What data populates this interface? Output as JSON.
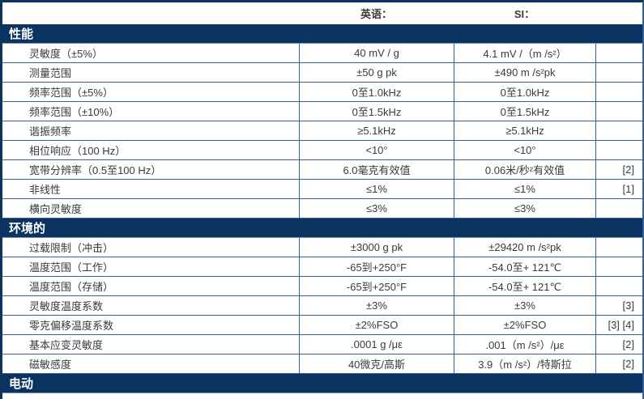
{
  "header": {
    "english": "英语：",
    "si": "SI："
  },
  "colors": {
    "section_bar_navy": "#0b3360",
    "grid_border_blue": "#376092",
    "body_text": "#3a3a3a",
    "header_text": "#111111",
    "section_text": "#ffffff"
  },
  "sections": [
    {
      "title": "性能",
      "rows": [
        {
          "label": "灵敏度（±5%）",
          "english": "40 mV / g",
          "si": "4.1 mV /（m /s²）",
          "note": ""
        },
        {
          "label": "测量范围",
          "english": "±50 g pk",
          "si": "±490 m /s²pk",
          "note": ""
        },
        {
          "label": "频率范围（±5%）",
          "english": "0至1.0kHz",
          "si": "0至1.0kHz",
          "note": ""
        },
        {
          "label": "频率范围（±10%）",
          "english": "0至1.5kHz",
          "si": "0至1.5kHz",
          "note": ""
        },
        {
          "label": "谐振频率",
          "english": "≥5.1kHz",
          "si": "≥5.1kHz",
          "note": ""
        },
        {
          "label": "相位响应（100 Hz）",
          "english": "<10°",
          "si": "<10°",
          "note": ""
        },
        {
          "label": "宽带分辨率（0.5至100 Hz）",
          "english": "6.0毫克有效值",
          "si": "0.06米/秒²有效值",
          "note": "[2]"
        },
        {
          "label": "非线性",
          "english": "≤1%",
          "si": "≤1%",
          "note": "[1]"
        },
        {
          "label": "横向灵敏度",
          "english": "≤3%",
          "si": "≤3%",
          "note": ""
        }
      ]
    },
    {
      "title": "环境的",
      "rows": [
        {
          "label": "过载限制（冲击）",
          "english": "±3000 g pk",
          "si": "±29420 m /s²pk",
          "note": ""
        },
        {
          "label": "温度范围（工作）",
          "english": "-65到+250°F",
          "si": "-54.0至+ 121℃",
          "note": ""
        },
        {
          "label": "温度范围（存储）",
          "english": "-65到+250°F",
          "si": "-54.0至+ 121℃",
          "note": ""
        },
        {
          "label": "灵敏度温度系数",
          "english": "±3%",
          "si": "±3%",
          "note": "[3]"
        },
        {
          "label": "零克偏移温度系数",
          "english": "±2%FSO",
          "si": "±2%FSO",
          "note": "[3] [4]"
        },
        {
          "label": "基本应变灵敏度",
          "english": ".0001 g /με",
          "si": ".001（m /s²）/με",
          "note": "[2]"
        },
        {
          "label": "磁敏感度",
          "english": "40微克/高斯",
          "si": "3.9（m /s²）/特斯拉",
          "note": "[2]"
        }
      ]
    },
    {
      "title": "电动",
      "rows": []
    }
  ]
}
